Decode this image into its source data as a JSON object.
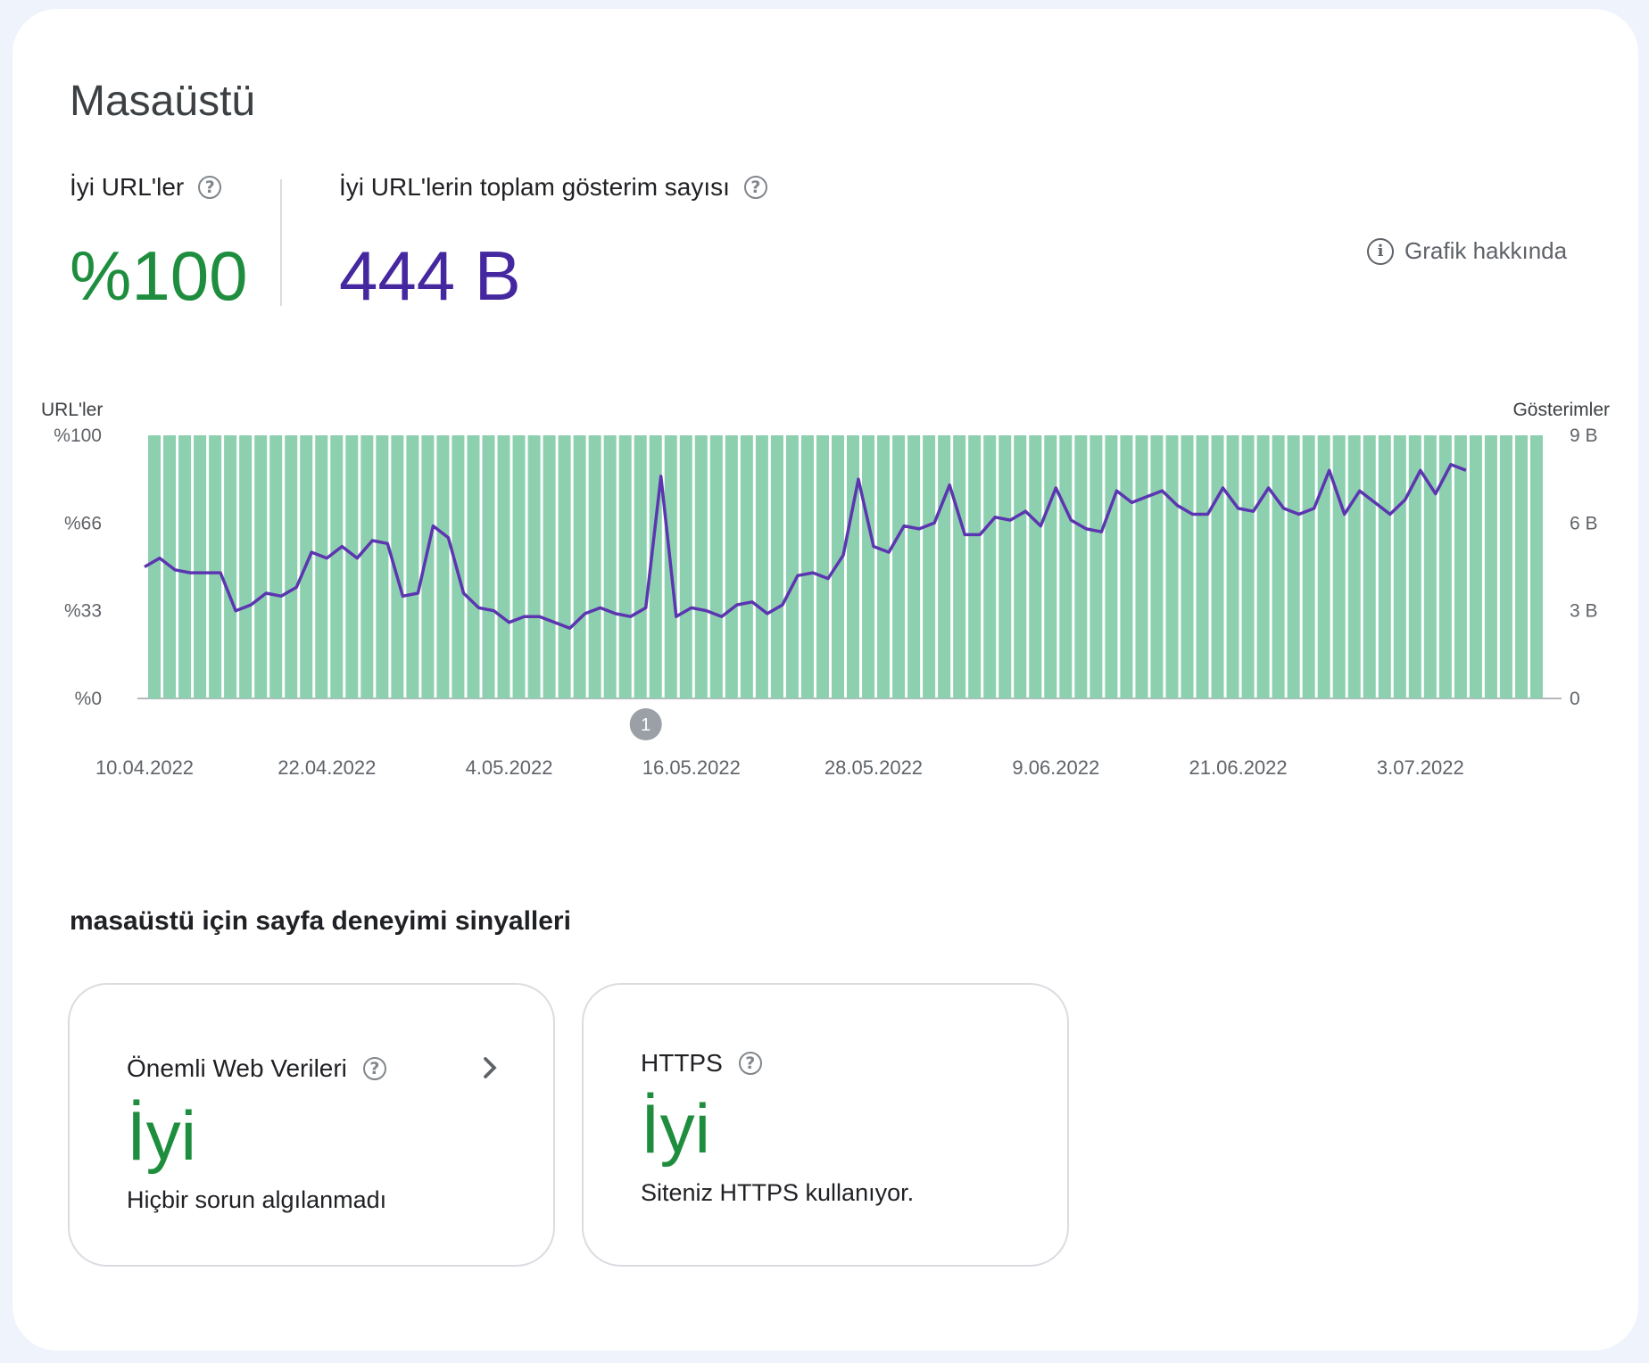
{
  "title": "Masaüstü",
  "metrics": {
    "good_urls": {
      "label": "İyi URL'ler",
      "value": "%100",
      "color": "#1e8e3e"
    },
    "impressions": {
      "label": "İyi URL'lerin toplam gösterim sayısı",
      "value": "444 B",
      "color": "#4527a0"
    }
  },
  "about_label": "Grafik hakkında",
  "section_title": "masaüstü için sayfa deneyimi sinyalleri",
  "cards": [
    {
      "title": "Önemli Web Verileri",
      "status": "İyi",
      "description": "Hiçbir sorun algılanmadı"
    },
    {
      "title": "HTTPS",
      "status": "İyi",
      "description": "Siteniz HTTPS kullanıyor."
    }
  ],
  "chart_data": {
    "type": "bar+line",
    "y_left_title": "URL'ler",
    "y_right_title": "Gösterimler",
    "y_left_ticks": [
      "%100",
      "%66",
      "%33",
      "%0"
    ],
    "y_right_ticks": [
      "9 B",
      "6 B",
      "3 B",
      "0"
    ],
    "y_left_range": [
      0,
      100
    ],
    "y_right_range": [
      0,
      9
    ],
    "x_tick_labels": [
      "10.04.2022",
      "22.04.2022",
      "4.05.2022",
      "16.05.2022",
      "28.05.2022",
      "9.06.2022",
      "21.06.2022",
      "3.07.2022"
    ],
    "annotation_label": "1",
    "annotation_date": "13.05.2022",
    "bar_color": "#8dd0af",
    "line_color": "#5c35b1",
    "series": [
      {
        "name": "İyi URL'ler",
        "unit": "%",
        "value_all_days": 100
      },
      {
        "name": "Gösterimler",
        "unit": "B",
        "values": [
          4.5,
          4.8,
          4.4,
          4.3,
          4.3,
          4.3,
          3.0,
          3.2,
          3.6,
          3.5,
          3.8,
          5.0,
          4.8,
          5.2,
          4.8,
          5.4,
          5.3,
          3.5,
          3.6,
          5.9,
          5.5,
          3.6,
          3.1,
          3.0,
          2.6,
          2.8,
          2.8,
          2.6,
          2.4,
          2.9,
          3.1,
          2.9,
          2.8,
          3.1,
          7.6,
          2.8,
          3.1,
          3.0,
          2.8,
          3.2,
          3.3,
          2.9,
          3.2,
          4.2,
          4.3,
          4.1,
          4.9,
          7.5,
          5.2,
          5.0,
          5.9,
          5.8,
          6.0,
          7.3,
          5.6,
          5.6,
          6.2,
          6.1,
          6.4,
          5.9,
          7.2,
          6.1,
          5.8,
          5.7,
          7.1,
          6.7,
          6.9,
          7.1,
          6.6,
          6.3,
          6.3,
          7.2,
          6.5,
          6.4,
          7.2,
          6.5,
          6.3,
          6.5,
          7.8,
          6.3,
          7.1,
          6.7,
          6.3,
          6.8,
          7.8,
          7.0,
          8.0,
          7.8
        ]
      }
    ]
  }
}
